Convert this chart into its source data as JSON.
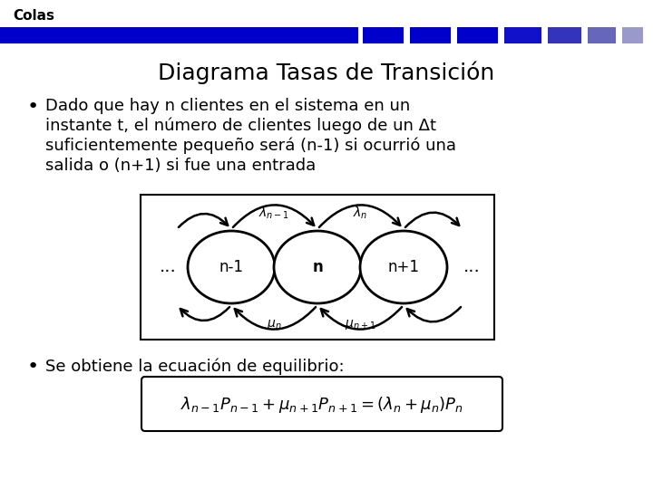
{
  "title": "Diagrama Tasas de Transición",
  "header_text": "Colas",
  "bullet1_lines": [
    "Dado que hay n clientes en el sistema en un",
    "instante t, el número de clientes luego de un Δt",
    "suficientemente pequeño será (n-1) si ocurrió una",
    "salida o (n+1) si fue una entrada"
  ],
  "bullet2": "Se obtiene la ecuación de equilibrio:",
  "bg_color": "#ffffff",
  "header_color": "#0000cc",
  "title_fontsize": 18,
  "body_fontsize": 13,
  "node_labels": [
    "n-1",
    "n",
    "n+1"
  ]
}
